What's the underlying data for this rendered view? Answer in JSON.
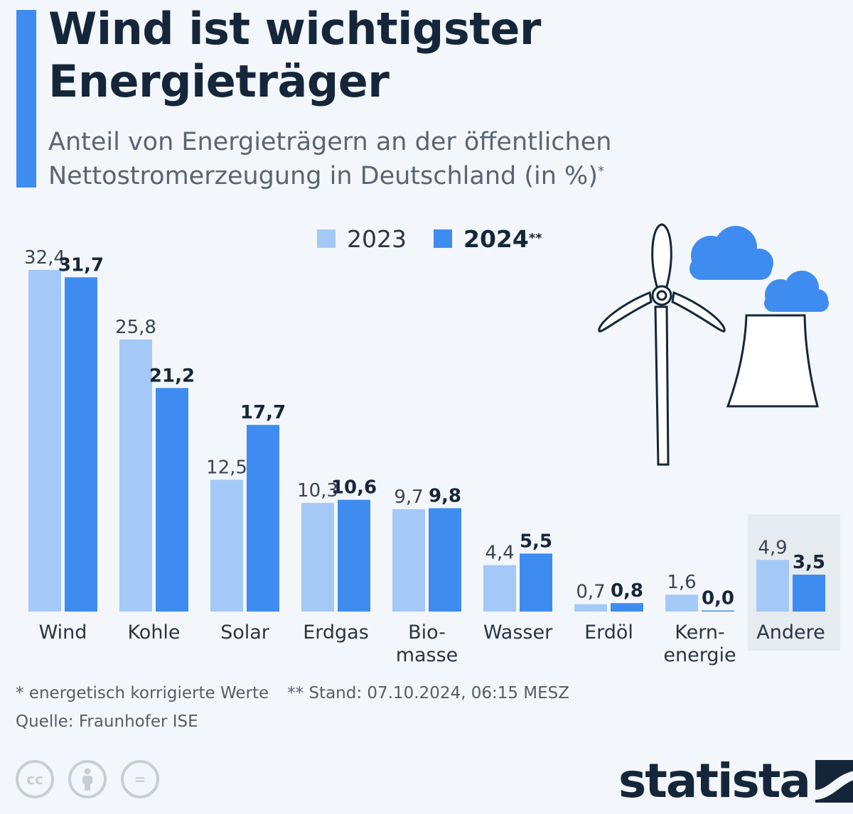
{
  "header": {
    "title_line1": "Wind ist wichtigster",
    "title_line2": "Energieträger",
    "subtitle_line1": "Anteil von Energieträgern an der öffentlichen",
    "subtitle_line2": "Nettostromerzeugung in Deutschland (in %)",
    "subtitle_mark": "*"
  },
  "legend": {
    "label_2023": "2023",
    "label_2024": "2024",
    "mark_2024": "**"
  },
  "colors": {
    "accent": "#3f8cf0",
    "series_2023": "#a4c9f6",
    "series_2024": "#3f8cf0",
    "highlight_band": "#e6ebf0"
  },
  "chart_data": {
    "type": "bar",
    "categories": [
      [
        "Wind"
      ],
      [
        "Kohle"
      ],
      [
        "Solar"
      ],
      [
        "Erdgas"
      ],
      [
        "Bio-",
        "masse"
      ],
      [
        "Wasser"
      ],
      [
        "Erdöl"
      ],
      [
        "Kern-",
        "energie"
      ],
      [
        "Andere"
      ]
    ],
    "series": [
      {
        "name": "2023",
        "values": [
          32.4,
          25.8,
          12.5,
          10.3,
          9.7,
          4.4,
          0.7,
          1.6,
          4.9
        ],
        "labels": [
          "32,4",
          "25,8",
          "12,5",
          "10,3",
          "9,7",
          "4,4",
          "0,7",
          "1,6",
          "4,9"
        ]
      },
      {
        "name": "2024",
        "values": [
          31.7,
          21.2,
          17.7,
          10.6,
          9.8,
          5.5,
          0.8,
          0.0,
          3.5
        ],
        "labels": [
          "31,7",
          "21,2",
          "17,7",
          "10,6",
          "9,8",
          "5,5",
          "0,8",
          "0,0",
          "3,5"
        ]
      }
    ],
    "highlighted_category": "Andere",
    "ylim": [
      0,
      32.4
    ],
    "grid": false
  },
  "footer": {
    "note1": "* energetisch korrigierte Werte",
    "note2": "** Stand: 07.10.2024, 06:15 MESZ",
    "source": "Quelle: Fraunhofer ISE",
    "license_icons": [
      "cc-icon",
      "attribution-icon",
      "no-derivatives-icon"
    ],
    "license_labels": [
      "cc",
      "",
      "="
    ],
    "brand": "statista"
  }
}
